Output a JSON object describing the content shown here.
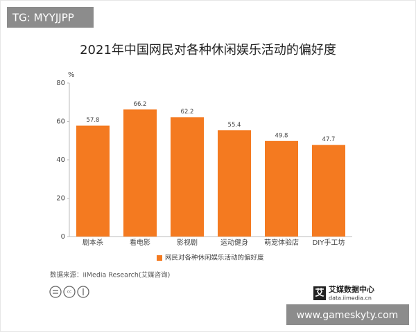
{
  "watermark_top": "TG: MYYJJPP",
  "watermark_bottom": "www.gameskyty.com",
  "source": "数据来源：iiMedia Research(艾媒咨询)",
  "logo": {
    "mark": "艾",
    "name": "艾媒数据中心",
    "url": "data.iimedia.cn"
  },
  "chart_data": {
    "type": "bar",
    "title": "2021年中国网民对各种休闲娱乐活动的偏好度",
    "y_unit": "%",
    "categories": [
      "剧本杀",
      "看电影",
      "影视剧",
      "运动健身",
      "萌宠体验店",
      "DIY手工坊"
    ],
    "series": [
      {
        "name": "网民对各种休闲娱乐活动的偏好度",
        "color": "#f47a20",
        "values": [
          57.8,
          66.2,
          62.2,
          55.4,
          49.8,
          47.7
        ]
      }
    ],
    "ylim": [
      0,
      80
    ],
    "yticks": [
      0,
      20,
      40,
      60,
      80
    ],
    "grid": false,
    "legend": "bottom"
  }
}
